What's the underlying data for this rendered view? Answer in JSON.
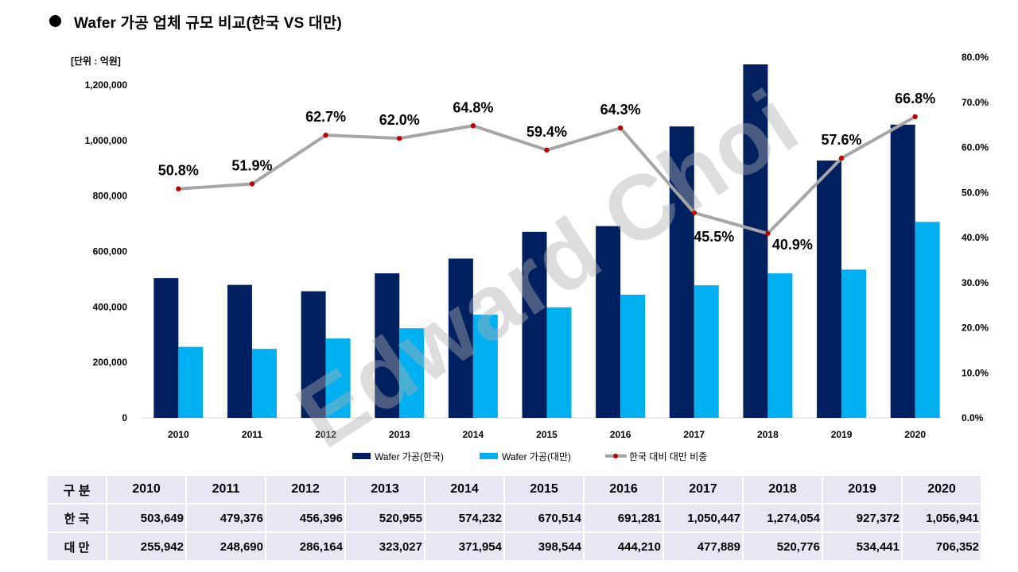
{
  "title_bullet_icon": "filled-circle",
  "chart_data": {
    "type": "bar",
    "combo": "bar+line",
    "title": "Wafer 가공 업체 규모 비교(한국 VS 대만)",
    "unit_label": "[단위 : 억원]",
    "categories": [
      "2010",
      "2011",
      "2012",
      "2013",
      "2014",
      "2015",
      "2016",
      "2017",
      "2018",
      "2019",
      "2020"
    ],
    "series": [
      {
        "name": "Wafer 가공(한국)",
        "type": "bar",
        "axis": "left",
        "color": "#002060",
        "values": [
          503649,
          479376,
          456396,
          520955,
          574232,
          670514,
          691281,
          1050447,
          1274054,
          927372,
          1056941
        ]
      },
      {
        "name": "Wafer 가공(대만)",
        "type": "bar",
        "axis": "left",
        "color": "#00B0F0",
        "values": [
          255942,
          248690,
          286164,
          323027,
          371954,
          398544,
          444210,
          477889,
          520776,
          534441,
          706352
        ]
      },
      {
        "name": "한국 대비 대만 비중",
        "type": "line",
        "axis": "right",
        "color": "#A6A6A6",
        "marker_color": "#C00000",
        "values": [
          0.508,
          0.519,
          0.627,
          0.62,
          0.648,
          0.594,
          0.643,
          0.455,
          0.409,
          0.576,
          0.668
        ],
        "data_labels": [
          "50.8%",
          "51.9%",
          "62.7%",
          "62.0%",
          "64.8%",
          "59.4%",
          "64.3%",
          "45.5%",
          "40.9%",
          "57.6%",
          "66.8%"
        ],
        "label_positions": [
          "above",
          "above",
          "above",
          "above",
          "above",
          "above",
          "above",
          "below-right",
          "right",
          "above",
          "above"
        ]
      }
    ],
    "y_left": {
      "min": 0,
      "max": 1300000,
      "step": 200000,
      "tick_labels": [
        "0",
        "200,000",
        "400,000",
        "600,000",
        "800,000",
        "1,000,000",
        "1,200,000"
      ]
    },
    "y_right": {
      "min": 0,
      "max": 0.8,
      "step": 0.1,
      "tick_labels": [
        "0.0%",
        "10.0%",
        "20.0%",
        "30.0%",
        "40.0%",
        "50.0%",
        "60.0%",
        "70.0%",
        "80.0%"
      ]
    },
    "grid": false,
    "legend": "bottom"
  },
  "table": {
    "background": "#E7E7F3",
    "header": [
      "구 분",
      "2010",
      "2011",
      "2012",
      "2013",
      "2014",
      "2015",
      "2016",
      "2017",
      "2018",
      "2019",
      "2020"
    ],
    "rows": [
      {
        "label": "한 국",
        "values": [
          "503,649",
          "479,376",
          "456,396",
          "520,955",
          "574,232",
          "670,514",
          "691,281",
          "1,050,447",
          "1,274,054",
          "927,372",
          "1,056,941"
        ]
      },
      {
        "label": "대 만",
        "values": [
          "255,942",
          "248,690",
          "286,164",
          "323,027",
          "371,954",
          "398,544",
          "444,210",
          "477,889",
          "520,776",
          "534,441",
          "706,352"
        ]
      }
    ]
  },
  "watermark": "Edward Choi"
}
